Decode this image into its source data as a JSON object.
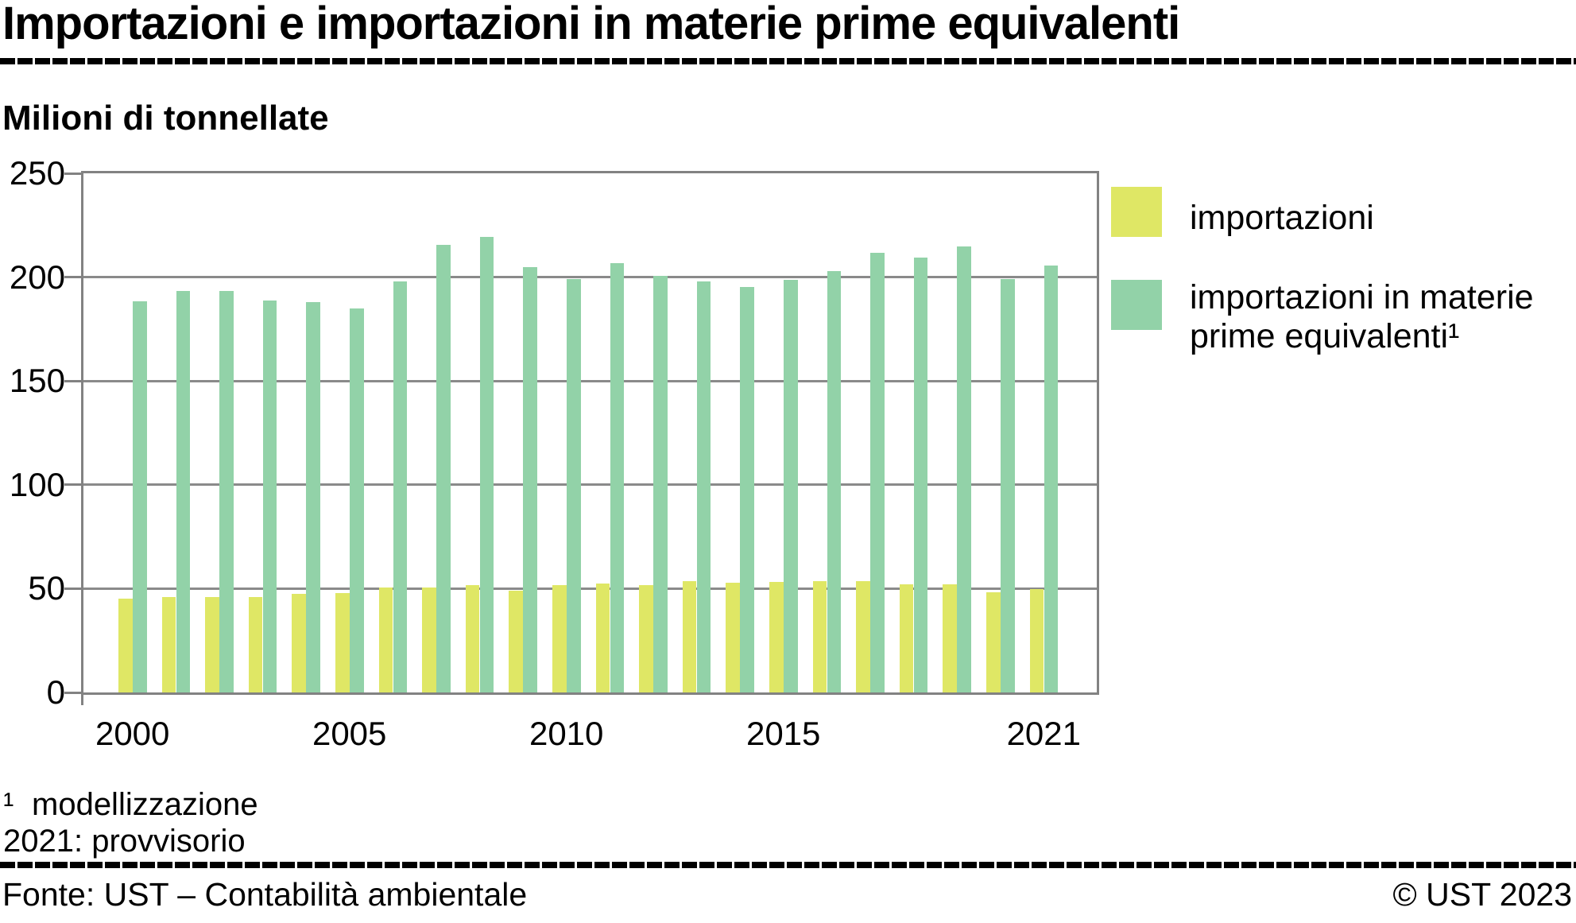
{
  "title": "Importazioni e importazioni in materie prime equivalenti",
  "subtitle": "Milioni di tonnellate",
  "legend": {
    "items": [
      {
        "label": "importazioni",
        "lines": [
          "importazioni",
          ""
        ],
        "color": "#dfe765"
      },
      {
        "label": "importazioni in materie prime equivalenti¹",
        "lines": [
          "importazioni in materie",
          "prime equivalenti¹"
        ],
        "color": "#92d2a8"
      }
    ]
  },
  "footnotes": [
    {
      "marker": "¹",
      "text": "modellizzazione"
    },
    {
      "marker": "",
      "text": "2021: provvisorio"
    }
  ],
  "footer": {
    "source": "Fonte: UST – Contabilità ambientale",
    "copyright": "© UST 2023"
  },
  "colors": {
    "importazioni": "#dfe765",
    "materie_prime": "#92d2a8",
    "grid": "#8a8a8a",
    "frame": "#828282"
  },
  "chart_data": {
    "type": "bar",
    "title": "Importazioni e importazioni in materie prime equivalenti",
    "ylabel": "Milioni di tonnellate",
    "xlabel": "",
    "categories": [
      2000,
      2001,
      2002,
      2003,
      2004,
      2005,
      2006,
      2007,
      2008,
      2009,
      2010,
      2011,
      2012,
      2013,
      2014,
      2015,
      2016,
      2017,
      2018,
      2019,
      2020,
      2021
    ],
    "series": [
      {
        "name": "importazioni",
        "color": "#dfe765",
        "values": [
          45.2,
          46.1,
          46.1,
          45.8,
          47.3,
          48.0,
          50.6,
          50.6,
          51.5,
          49.0,
          51.5,
          52.3,
          51.5,
          53.6,
          52.9,
          53.4,
          53.6,
          53.6,
          51.9,
          52.0,
          48.1,
          49.9
        ]
      },
      {
        "name": "importazioni in materie prime equivalenti¹",
        "color": "#92d2a8",
        "values": [
          188.5,
          193.5,
          193.5,
          188.8,
          187.8,
          184.8,
          197.9,
          215.4,
          219.2,
          204.9,
          199.0,
          206.8,
          200.6,
          197.9,
          195.4,
          198.6,
          203.0,
          211.6,
          209.4,
          214.8,
          199.0,
          205.5
        ]
      }
    ],
    "ylim": [
      0,
      250
    ],
    "yticks": [
      0,
      50,
      100,
      150,
      200,
      250
    ],
    "xtick_labels": [
      "2000",
      "2005",
      "2010",
      "2015",
      "2021"
    ],
    "xtick_years": [
      2000,
      2005,
      2010,
      2015,
      2021
    ],
    "grid": true,
    "legend_position": "right"
  }
}
